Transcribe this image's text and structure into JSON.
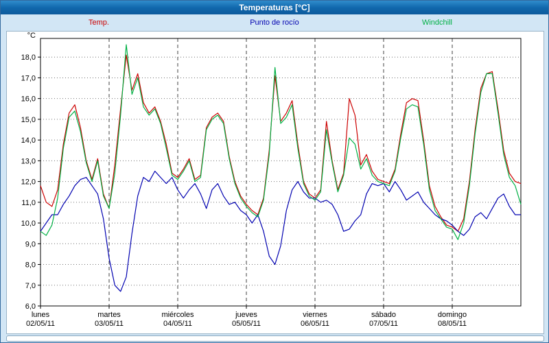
{
  "window": {
    "title": "Temperaturas [°C]"
  },
  "legend": [
    {
      "label": "Temp.",
      "color": "#cc0000"
    },
    {
      "label": "Punto de rocío",
      "color": "#0000b0"
    },
    {
      "label": "Windchill",
      "color": "#00b044"
    }
  ],
  "chart_data": {
    "type": "line",
    "title": "Temperaturas [°C]",
    "grid": true,
    "legend_position": "top",
    "y_axis": {
      "unit_label": "°C",
      "min": 6.0,
      "max": 18.9,
      "tick_step": 1.0,
      "tick_labels": [
        "6,0",
        "7,0",
        "8,0",
        "9,0",
        "10,0",
        "11,0",
        "12,0",
        "13,0",
        "14,0",
        "15,0",
        "16,0",
        "17,0",
        "18,0"
      ]
    },
    "x_axis": {
      "hours_per_point": 2,
      "days": [
        {
          "name": "lunes",
          "date": "02/05/11"
        },
        {
          "name": "martes",
          "date": "03/05/11"
        },
        {
          "name": "miércoles",
          "date": "04/05/11"
        },
        {
          "name": "jueves",
          "date": "05/05/11"
        },
        {
          "name": "viernes",
          "date": "06/05/11"
        },
        {
          "name": "sábado",
          "date": "07/05/11"
        },
        {
          "name": "domingo",
          "date": "08/05/11"
        }
      ]
    },
    "series": [
      {
        "name": "Temp.",
        "color": "#cc0000",
        "values": [
          11.8,
          11.0,
          10.8,
          11.6,
          13.8,
          15.3,
          15.7,
          14.6,
          13.0,
          12.1,
          13.1,
          11.4,
          10.7,
          12.8,
          15.5,
          18.1,
          16.4,
          17.2,
          15.8,
          15.3,
          15.6,
          14.9,
          13.8,
          12.4,
          12.2,
          12.6,
          13.1,
          12.1,
          12.3,
          14.6,
          15.1,
          15.3,
          14.9,
          13.2,
          12.0,
          11.3,
          10.9,
          10.6,
          10.4,
          11.2,
          13.5,
          17.1,
          14.9,
          15.3,
          15.9,
          13.8,
          12.0,
          11.4,
          11.2,
          11.6,
          14.9,
          13.0,
          11.6,
          12.4,
          16.0,
          15.2,
          12.8,
          13.3,
          12.5,
          12.1,
          12.0,
          11.9,
          12.6,
          14.3,
          15.8,
          16.0,
          15.9,
          14.0,
          11.8,
          10.8,
          10.3,
          9.9,
          9.8,
          9.6,
          10.2,
          12.0,
          14.5,
          16.5,
          17.2,
          17.3,
          15.5,
          13.5,
          12.4,
          12.0,
          11.9
        ]
      },
      {
        "name": "Punto de rocío",
        "color": "#0000b0",
        "values": [
          9.6,
          10.0,
          10.4,
          10.4,
          10.9,
          11.3,
          11.8,
          12.1,
          12.2,
          11.8,
          11.4,
          10.2,
          8.3,
          7.0,
          6.7,
          7.4,
          9.5,
          11.3,
          12.2,
          12.0,
          12.5,
          12.2,
          11.9,
          12.2,
          11.6,
          11.2,
          11.6,
          11.9,
          11.4,
          10.7,
          11.6,
          11.9,
          11.3,
          10.9,
          11.0,
          10.6,
          10.4,
          10.0,
          10.4,
          9.6,
          8.4,
          8.0,
          8.9,
          10.6,
          11.6,
          12.0,
          11.5,
          11.2,
          11.2,
          11.0,
          11.1,
          10.9,
          10.4,
          9.6,
          9.7,
          10.1,
          10.4,
          11.4,
          11.9,
          11.8,
          11.9,
          11.5,
          12.0,
          11.6,
          11.1,
          11.3,
          11.5,
          11.0,
          10.7,
          10.4,
          10.2,
          10.1,
          9.9,
          9.6,
          9.4,
          9.7,
          10.3,
          10.5,
          10.2,
          10.7,
          11.2,
          11.4,
          10.8,
          10.4,
          10.4
        ]
      },
      {
        "name": "Windchill",
        "color": "#00b044",
        "values": [
          9.6,
          9.4,
          9.9,
          11.2,
          13.6,
          15.1,
          15.4,
          14.4,
          12.9,
          12.0,
          13.0,
          11.3,
          10.7,
          12.4,
          15.2,
          18.6,
          16.2,
          17.0,
          15.6,
          15.2,
          15.5,
          14.8,
          13.6,
          12.3,
          12.1,
          12.5,
          13.0,
          12.0,
          12.2,
          14.5,
          15.0,
          15.2,
          14.8,
          13.1,
          11.9,
          11.2,
          10.8,
          10.5,
          10.3,
          11.1,
          13.3,
          17.5,
          14.8,
          15.1,
          15.7,
          13.6,
          11.9,
          11.3,
          11.1,
          11.5,
          14.5,
          12.9,
          11.5,
          12.3,
          14.1,
          13.8,
          12.6,
          13.1,
          12.3,
          12.0,
          11.9,
          11.8,
          12.5,
          14.1,
          15.5,
          15.7,
          15.6,
          13.8,
          11.6,
          10.6,
          10.2,
          9.8,
          9.7,
          9.2,
          10.0,
          11.8,
          14.3,
          16.3,
          17.2,
          17.2,
          15.3,
          13.3,
          12.2,
          11.8,
          10.9
        ]
      }
    ]
  }
}
